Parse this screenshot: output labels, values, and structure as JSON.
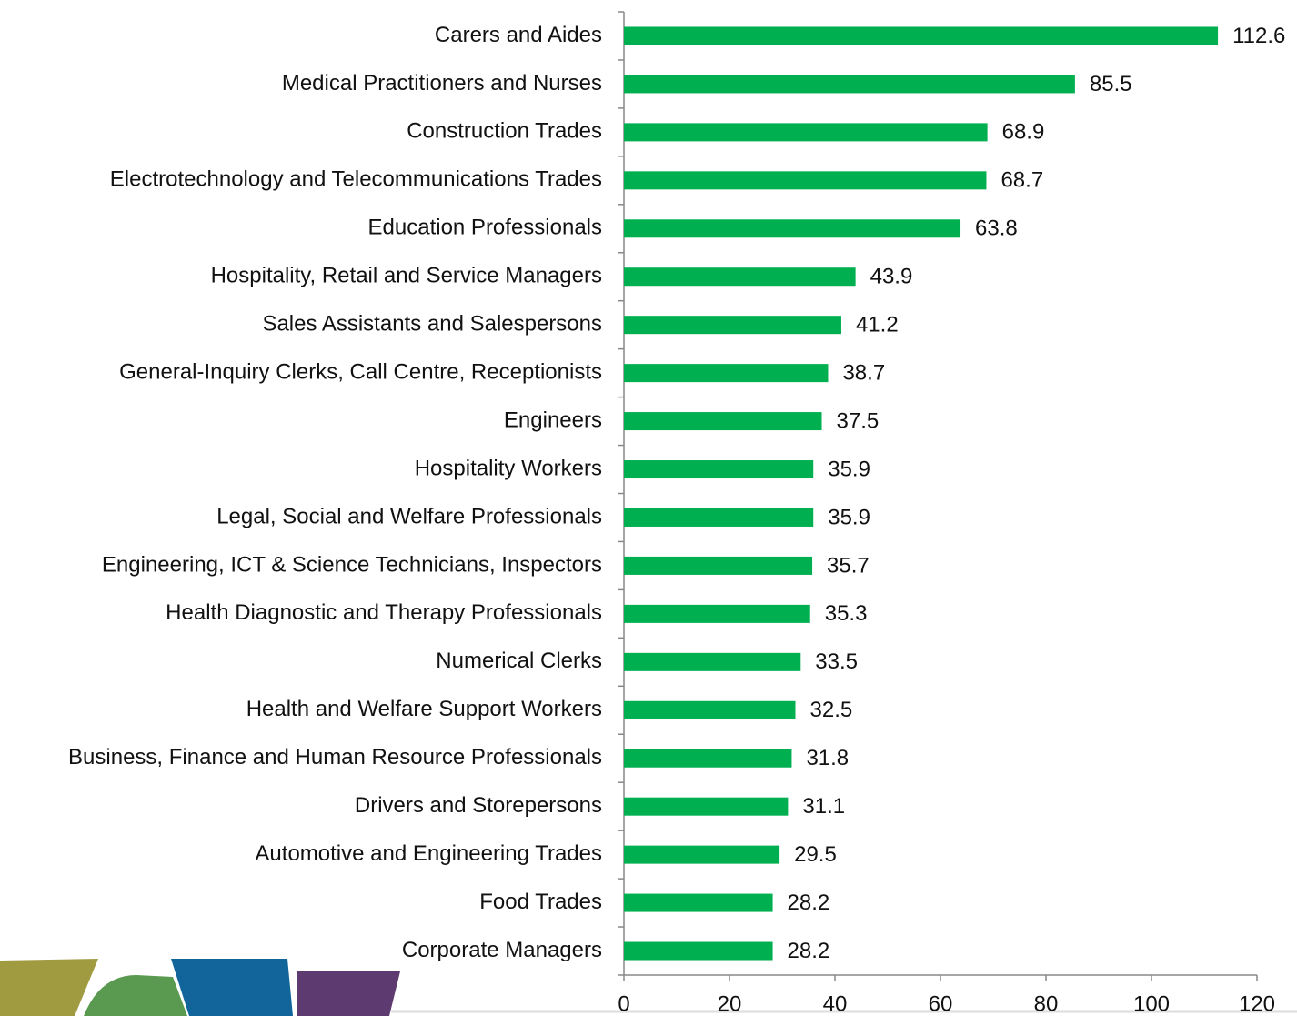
{
  "chart_data": {
    "type": "barh",
    "categories": [
      "Carers and Aides",
      "Medical Practitioners and Nurses",
      "Construction Trades",
      "Electrotechnology and Telecommunications Trades",
      "Education Professionals",
      "Hospitality, Retail and Service Managers",
      "Sales Assistants and Salespersons",
      "General-Inquiry Clerks, Call Centre, Receptionists",
      "Engineers",
      "Hospitality Workers",
      "Legal, Social and Welfare Professionals",
      "Engineering, ICT & Science Technicians, Inspectors",
      "Health Diagnostic and Therapy Professionals",
      "Numerical Clerks",
      "Health and Welfare Support Workers",
      "Business, Finance and Human Resource Professionals",
      "Drivers and Storepersons",
      "Automotive and Engineering Trades",
      "Food Trades",
      "Corporate Managers"
    ],
    "values": [
      112.6,
      85.5,
      68.9,
      68.7,
      63.8,
      43.9,
      41.2,
      38.7,
      37.5,
      35.9,
      35.9,
      35.7,
      35.3,
      33.5,
      32.5,
      31.8,
      31.1,
      29.5,
      28.2,
      28.2
    ],
    "color": "#00b050",
    "xlim": [
      0,
      120
    ],
    "xticks": [
      0,
      20,
      40,
      60,
      80,
      100,
      120
    ]
  }
}
